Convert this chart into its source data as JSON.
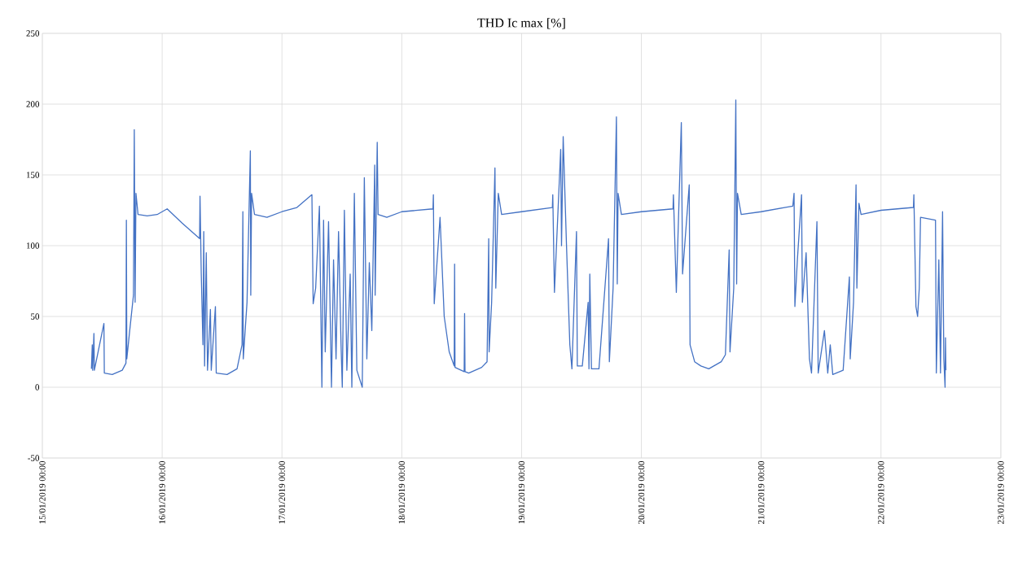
{
  "chart_data": {
    "type": "line",
    "title": "THD Ic max [%]",
    "grid": true,
    "xlim": [
      "2019-01-15T00:00",
      "2019-01-23T00:00"
    ],
    "xticks": [
      {
        "value": "2019-01-15T00:00",
        "label": "15/01/2019 00:00"
      },
      {
        "value": "2019-01-16T00:00",
        "label": "16/01/2019 00:00"
      },
      {
        "value": "2019-01-17T00:00",
        "label": "17/01/2019 00:00"
      },
      {
        "value": "2019-01-18T00:00",
        "label": "18/01/2019 00:00"
      },
      {
        "value": "2019-01-19T00:00",
        "label": "19/01/2019 00:00"
      },
      {
        "value": "2019-01-20T00:00",
        "label": "20/01/2019 00:00"
      },
      {
        "value": "2019-01-21T00:00",
        "label": "21/01/2019 00:00"
      },
      {
        "value": "2019-01-22T00:00",
        "label": "22/01/2019 00:00"
      },
      {
        "value": "2019-01-23T00:00",
        "label": "23/01/2019 00:00"
      }
    ],
    "ylim": [
      -50,
      250
    ],
    "yticks": [
      -50,
      0,
      50,
      100,
      150,
      200,
      250
    ],
    "series": [
      {
        "color": "#4472c4",
        "x": [
          "2019-01-15T09:50",
          "2019-01-15T10:00",
          "2019-01-15T10:05",
          "2019-01-15T10:20",
          "2019-01-15T10:25",
          "2019-01-15T12:20",
          "2019-01-15T12:25",
          "2019-01-15T14:00",
          "2019-01-15T16:00",
          "2019-01-15T16:45",
          "2019-01-15T16:50",
          "2019-01-15T16:55",
          "2019-01-15T17:30",
          "2019-01-15T18:15",
          "2019-01-15T18:25",
          "2019-01-15T18:35",
          "2019-01-15T18:45",
          "2019-01-15T19:10",
          "2019-01-15T21:00",
          "2019-01-15T23:00",
          "2019-01-16T01:00",
          "2019-01-16T04:00",
          "2019-01-16T07:30",
          "2019-01-16T07:35",
          "2019-01-16T07:50",
          "2019-01-16T08:10",
          "2019-01-16T08:20",
          "2019-01-16T08:30",
          "2019-01-16T08:50",
          "2019-01-16T09:05",
          "2019-01-16T09:40",
          "2019-01-16T09:50",
          "2019-01-16T10:40",
          "2019-01-16T10:50",
          "2019-01-16T13:00",
          "2019-01-16T15:00",
          "2019-01-16T16:00",
          "2019-01-16T16:10",
          "2019-01-16T16:15",
          "2019-01-16T17:00",
          "2019-01-16T17:40",
          "2019-01-16T17:45",
          "2019-01-16T17:55",
          "2019-01-16T18:30",
          "2019-01-16T21:00",
          "2019-01-17T00:00",
          "2019-01-17T03:00",
          "2019-01-17T06:00",
          "2019-01-17T06:15",
          "2019-01-17T06:45",
          "2019-01-17T07:30",
          "2019-01-17T08:00",
          "2019-01-17T08:20",
          "2019-01-17T08:40",
          "2019-01-17T09:20",
          "2019-01-17T09:55",
          "2019-01-17T10:20",
          "2019-01-17T10:50",
          "2019-01-17T11:20",
          "2019-01-17T11:50",
          "2019-01-17T12:05",
          "2019-01-17T12:30",
          "2019-01-17T13:00",
          "2019-01-17T13:40",
          "2019-01-17T14:00",
          "2019-01-17T14:30",
          "2019-01-17T15:00",
          "2019-01-17T16:05",
          "2019-01-17T16:30",
          "2019-01-17T17:00",
          "2019-01-17T17:30",
          "2019-01-17T18:00",
          "2019-01-17T18:35",
          "2019-01-17T18:40",
          "2019-01-17T19:05",
          "2019-01-17T19:15",
          "2019-01-17T21:00",
          "2019-01-18T00:00",
          "2019-01-18T06:15",
          "2019-01-18T06:20",
          "2019-01-18T06:30",
          "2019-01-18T07:40",
          "2019-01-18T08:30",
          "2019-01-18T09:30",
          "2019-01-18T10:30",
          "2019-01-18T10:35",
          "2019-01-18T10:40",
          "2019-01-18T12:30",
          "2019-01-18T12:35",
          "2019-01-18T12:40",
          "2019-01-18T13:25",
          "2019-01-18T16:00",
          "2019-01-18T17:05",
          "2019-01-18T17:25",
          "2019-01-18T17:30",
          "2019-01-18T18:00",
          "2019-01-18T18:40",
          "2019-01-18T18:50",
          "2019-01-18T19:20",
          "2019-01-18T20:00",
          "2019-01-19T00:00",
          "2019-01-19T06:10",
          "2019-01-19T06:15",
          "2019-01-19T06:35",
          "2019-01-19T07:50",
          "2019-01-19T08:00",
          "2019-01-19T08:20",
          "2019-01-19T09:00",
          "2019-01-19T09:40",
          "2019-01-19T10:05",
          "2019-01-19T11:00",
          "2019-01-19T11:10",
          "2019-01-19T12:10",
          "2019-01-19T13:20",
          "2019-01-19T13:30",
          "2019-01-19T13:40",
          "2019-01-19T14:00",
          "2019-01-19T15:30",
          "2019-01-19T17:25",
          "2019-01-19T17:35",
          "2019-01-19T18:20",
          "2019-01-19T19:00",
          "2019-01-19T19:10",
          "2019-01-19T19:20",
          "2019-01-19T20:00",
          "2019-01-20T00:00",
          "2019-01-20T06:20",
          "2019-01-20T06:25",
          "2019-01-20T07:00",
          "2019-01-20T08:00",
          "2019-01-20T08:15",
          "2019-01-20T09:35",
          "2019-01-20T09:45",
          "2019-01-20T10:40",
          "2019-01-20T11:55",
          "2019-01-20T13:30",
          "2019-01-20T16:00",
          "2019-01-20T16:50",
          "2019-01-20T17:35",
          "2019-01-20T17:45",
          "2019-01-20T18:30",
          "2019-01-20T18:55",
          "2019-01-20T19:05",
          "2019-01-20T19:15",
          "2019-01-20T20:00",
          "2019-01-21T00:00",
          "2019-01-21T06:20",
          "2019-01-21T06:35",
          "2019-01-21T06:45",
          "2019-01-21T07:15",
          "2019-01-21T08:05",
          "2019-01-21T08:15",
          "2019-01-21T09:00",
          "2019-01-21T09:40",
          "2019-01-21T10:05",
          "2019-01-21T11:10",
          "2019-01-21T11:25",
          "2019-01-21T12:40",
          "2019-01-21T13:20",
          "2019-01-21T13:50",
          "2019-01-21T14:20",
          "2019-01-21T16:25",
          "2019-01-21T17:40",
          "2019-01-21T17:50",
          "2019-01-21T18:30",
          "2019-01-21T19:00",
          "2019-01-21T19:10",
          "2019-01-21T19:35",
          "2019-01-21T20:00",
          "2019-01-22T00:00",
          "2019-01-22T06:30",
          "2019-01-22T06:35",
          "2019-01-22T07:00",
          "2019-01-22T07:20",
          "2019-01-22T07:40",
          "2019-01-22T07:55",
          "2019-01-22T10:55",
          "2019-01-22T11:05",
          "2019-01-22T11:35",
          "2019-01-22T11:55",
          "2019-01-22T12:20",
          "2019-01-22T12:35",
          "2019-01-22T12:50",
          "2019-01-22T12:55",
          "2019-01-22T13:00"
        ],
        "values": [
          13,
          30,
          12,
          38,
          12,
          45,
          10,
          9,
          12,
          17,
          118,
          20,
          40,
          65,
          182,
          60,
          137,
          122,
          121,
          122,
          126,
          116,
          105,
          135,
          80,
          30,
          110,
          15,
          95,
          12,
          55,
          12,
          57,
          10,
          9,
          13,
          30,
          124,
          20,
          60,
          167,
          65,
          137,
          122,
          120,
          124,
          127,
          136,
          59,
          70,
          128,
          0,
          118,
          25,
          117,
          0,
          90,
          20,
          110,
          30,
          0,
          125,
          12,
          80,
          0,
          137,
          12,
          0,
          148,
          20,
          88,
          40,
          157,
          65,
          173,
          122,
          120,
          124,
          126,
          136,
          59,
          120,
          50,
          25,
          15,
          87,
          14,
          11,
          52,
          11,
          10,
          14,
          18,
          105,
          25,
          60,
          155,
          70,
          137,
          122,
          124,
          127,
          136,
          67,
          168,
          100,
          177,
          100,
          30,
          13,
          110,
          15,
          15,
          60,
          13,
          80,
          13,
          13,
          105,
          18,
          70,
          191,
          73,
          137,
          122,
          124,
          126,
          136,
          67,
          187,
          80,
          143,
          30,
          18,
          15,
          13,
          18,
          23,
          97,
          25,
          70,
          203,
          73,
          137,
          122,
          124,
          128,
          137,
          57,
          90,
          136,
          60,
          95,
          20,
          10,
          117,
          10,
          40,
          10,
          30,
          9,
          12,
          78,
          20,
          60,
          143,
          70,
          130,
          122,
          125,
          127,
          136,
          57,
          50,
          70,
          120,
          118,
          10,
          90,
          10,
          124,
          20,
          0,
          35,
          12
        ]
      }
    ]
  }
}
